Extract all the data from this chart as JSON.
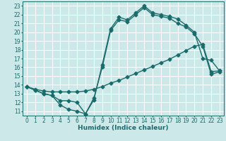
{
  "title": "",
  "xlabel": "Humidex (Indice chaleur)",
  "xlim": [
    -0.5,
    23.5
  ],
  "ylim": [
    10.5,
    23.5
  ],
  "xticks": [
    0,
    1,
    2,
    3,
    4,
    5,
    6,
    7,
    8,
    9,
    10,
    11,
    12,
    13,
    14,
    15,
    16,
    17,
    18,
    19,
    20,
    21,
    22,
    23
  ],
  "yticks": [
    11,
    12,
    13,
    14,
    15,
    16,
    17,
    18,
    19,
    20,
    21,
    22,
    23
  ],
  "background_color": "#cce8e8",
  "line_color": "#1a6b6b",
  "grid_color": "#ffffff",
  "line1_x": [
    0,
    1,
    2,
    3,
    4,
    5,
    6,
    7,
    8,
    9,
    10,
    11,
    12,
    13,
    14,
    15,
    16,
    17,
    18,
    19,
    20,
    21,
    22,
    23
  ],
  "line1_y": [
    13.8,
    13.4,
    13.0,
    12.8,
    11.7,
    11.2,
    11.0,
    10.7,
    12.3,
    16.3,
    20.4,
    21.7,
    21.4,
    22.2,
    23.0,
    22.2,
    22.0,
    21.8,
    21.5,
    20.8,
    20.0,
    17.0,
    16.8,
    15.6
  ],
  "line2_x": [
    0,
    1,
    2,
    3,
    4,
    5,
    6,
    7,
    8,
    9,
    10,
    11,
    12,
    13,
    14,
    15,
    16,
    17,
    18,
    19,
    20,
    21,
    22,
    23
  ],
  "line2_y": [
    13.8,
    13.5,
    13.3,
    13.2,
    13.2,
    13.2,
    13.2,
    13.3,
    13.5,
    13.8,
    14.2,
    14.5,
    14.9,
    15.3,
    15.7,
    16.1,
    16.5,
    16.9,
    17.4,
    17.9,
    18.4,
    18.6,
    15.5,
    15.6
  ],
  "line3_x": [
    0,
    1,
    2,
    3,
    4,
    5,
    6,
    7,
    8,
    9,
    10,
    11,
    12,
    13,
    14,
    15,
    16,
    17,
    18,
    19,
    20,
    21,
    22,
    23
  ],
  "line3_y": [
    13.8,
    13.4,
    13.0,
    12.8,
    12.2,
    12.2,
    12.0,
    10.7,
    12.5,
    16.0,
    20.2,
    21.4,
    21.2,
    22.0,
    22.8,
    22.0,
    21.8,
    21.6,
    21.0,
    20.6,
    19.8,
    18.4,
    15.2,
    15.5
  ],
  "marker": "D",
  "markersize": 2.5,
  "linewidth": 1.0,
  "tick_fontsize": 5.5,
  "xlabel_fontsize": 6.5
}
